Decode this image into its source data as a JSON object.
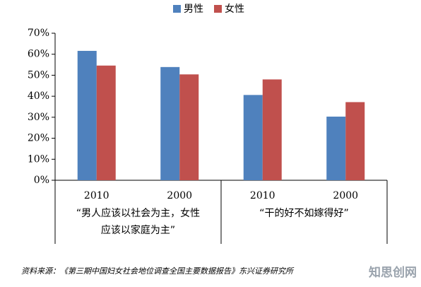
{
  "chart_data": {
    "type": "bar",
    "categories": [
      "2010",
      "2000",
      "2010",
      "2000"
    ],
    "groups": [
      {
        "lines": [
          "“男人应该以社会为主，女性",
          "应该以家庭为主”"
        ]
      },
      {
        "lines": [
          "“干的好不如嫁得好”"
        ]
      }
    ],
    "series": [
      {
        "name": "男性",
        "color": "#4f81bd",
        "values": [
          61.6,
          53.9,
          40.6,
          30.3
        ]
      },
      {
        "name": "女性",
        "color": "#c0504d",
        "values": [
          54.6,
          50.4,
          48.0,
          37.2
        ]
      }
    ],
    "ylim": [
      0,
      70
    ],
    "yticks": [
      {
        "value": 0,
        "label": "0%"
      },
      {
        "value": 10,
        "label": "10%"
      },
      {
        "value": 20,
        "label": "20%"
      },
      {
        "value": 30,
        "label": "30%"
      },
      {
        "value": 40,
        "label": "40%"
      },
      {
        "value": 50,
        "label": "50%"
      },
      {
        "value": 60,
        "label": "60%"
      },
      {
        "value": 70,
        "label": "70%"
      }
    ],
    "legend": "top",
    "source": "资料来源：《第三期中国妇女社会地位调查全国主要数据报告》东兴证券研究所",
    "watermark": "知思创网"
  }
}
